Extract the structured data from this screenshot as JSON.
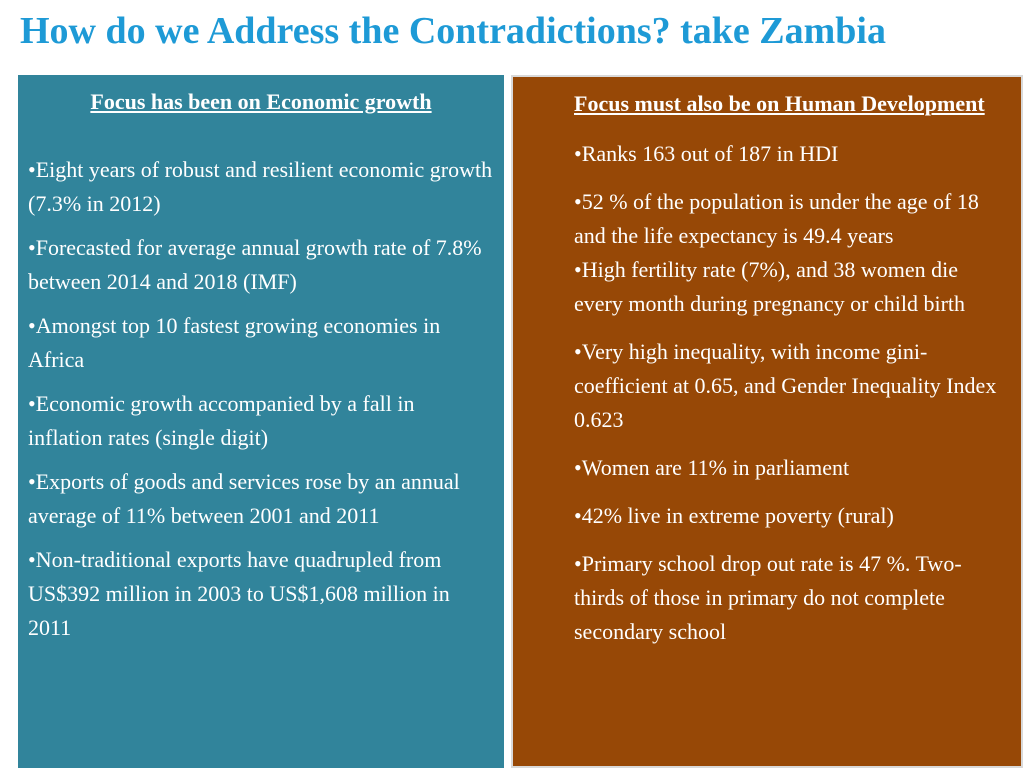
{
  "title": "How do we Address the Contradictions? take Zambia",
  "left_panel": {
    "heading": "Focus has been on Economic growth",
    "bullets": [
      "•Eight years of robust and resilient economic growth  (7.3% in 2012)",
      "•Forecasted for average annual growth rate of 7.8% between 2014 and 2018 (IMF)",
      "•Amongst top 10 fastest growing economies in Africa",
      "•Economic growth accompanied by a fall in inflation rates (single digit)",
      "•Exports of goods and services rose by an annual average of 11% between 2001 and 2011",
      "•Non-traditional exports have quadrupled from US$392 million in 2003 to US$1,608 million in 2011"
    ]
  },
  "right_panel": {
    "heading": "Focus must also be on Human Development",
    "bullets": [
      "•Ranks 163 out of  187 in HDI",
      "•52 % of  the population is under the age of 18 and the life expectancy is 49.4 years",
      "•High fertility rate (7%), and 38 women die every month during pregnancy or child birth",
      "•Very high inequality, with income gini-coefficient  at 0.65, and  Gender Inequality Index 0.623",
      "•Women are 11% in parliament",
      "•42%  live in extreme poverty (rural)",
      "•Primary school drop out rate is 47 %. Two-thirds of those in primary do not complete secondary school"
    ]
  },
  "colors": {
    "title": "#1e9ad6",
    "left_panel_bg": "#31849b",
    "right_panel_bg": "#974806",
    "panel_text": "#ffffff"
  }
}
